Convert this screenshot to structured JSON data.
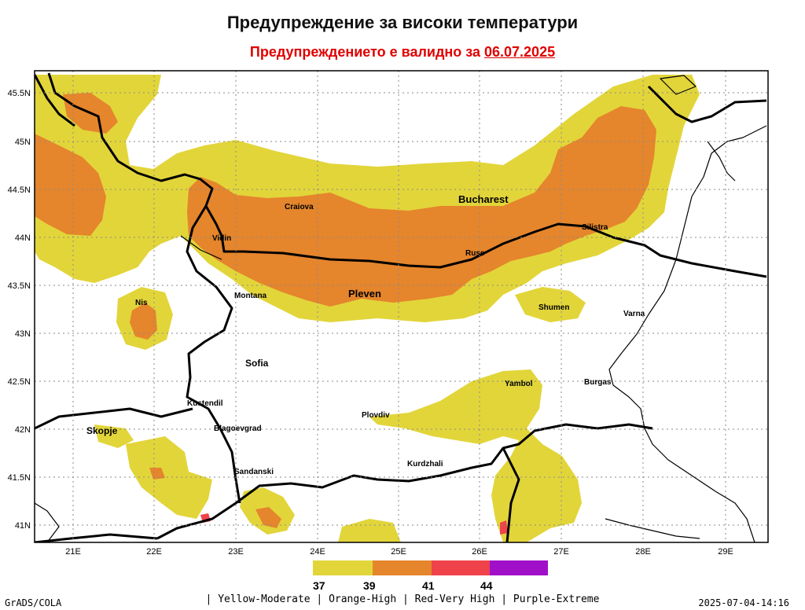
{
  "header": {
    "title": "Предупреждение за високи температури",
    "subtitle_prefix": "Предупреждението е валидно за ",
    "subtitle_date": "06.07.2025"
  },
  "map": {
    "lat_labels": [
      "45.5N",
      "45N",
      "44.5N",
      "44N",
      "43.5N",
      "43N",
      "42.5N",
      "42N",
      "41.5N",
      "41N"
    ],
    "lon_labels": [
      "21E",
      "22E",
      "23E",
      "24E",
      "25E",
      "26E",
      "27E",
      "28E",
      "29E"
    ],
    "cities": [
      {
        "name": "Craiova"
      },
      {
        "name": "Bucharest"
      },
      {
        "name": "Vidin"
      },
      {
        "name": "Silistra"
      },
      {
        "name": "Ruse"
      },
      {
        "name": "Montana"
      },
      {
        "name": "Pleven"
      },
      {
        "name": "Shumen"
      },
      {
        "name": "Varna"
      },
      {
        "name": "Nis"
      },
      {
        "name": "Sofia"
      },
      {
        "name": "Yambol"
      },
      {
        "name": "Burgas"
      },
      {
        "name": "Kustendil"
      },
      {
        "name": "Plovdiv"
      },
      {
        "name": "Skopje"
      },
      {
        "name": "Blagoevgrad"
      },
      {
        "name": "Kurdzhali"
      },
      {
        "name": "Sandanski"
      }
    ]
  },
  "legend": {
    "colors": [
      "#e2d53a",
      "#e5852c",
      "#f0424a",
      "#a010c8"
    ],
    "thresholds": [
      "37",
      "39",
      "41",
      "44"
    ],
    "text": "| Yellow-Moderate | Orange-High | Red-Very High | Purple-Extreme"
  },
  "footer": {
    "left": "GrADS/COLA",
    "right": "2025-07-04-14:16"
  }
}
